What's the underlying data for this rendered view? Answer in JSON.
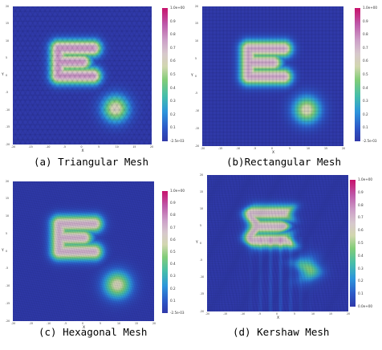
{
  "panels": [
    {
      "id": "a",
      "caption": "(a) Triangular Mesh",
      "mesh": "triangular",
      "xlabel": "X",
      "ylabel": "Y",
      "xticks": [
        "-20",
        "-15",
        "-10",
        "-5",
        "0",
        "5",
        "10",
        "15",
        "20"
      ],
      "yticks": [
        "20",
        "15",
        "10",
        "5",
        "0",
        "-5",
        "-10",
        "-15",
        "-20"
      ],
      "colorbar": {
        "max_label": "1.0e+00",
        "min_label": "-2.5e-03",
        "ticks": [
          "0.9",
          "0.8",
          "0.7",
          "0.6",
          "0.5",
          "0.4",
          "0.3",
          "0.2",
          "0.1"
        ]
      },
      "blobs": [
        {
          "shape": "E",
          "cx": 0,
          "cy": 4,
          "amp": 0.78
        },
        {
          "shape": "circle",
          "cx": 9.5,
          "cy": -9.5,
          "r": 4.5,
          "amp": 0.62
        }
      ]
    },
    {
      "id": "b",
      "caption": "(b)Rectangular Mesh",
      "mesh": "rectangular",
      "xlabel": "X",
      "ylabel": "Y",
      "xticks": [
        "-20",
        "-15",
        "-10",
        "-5",
        "0",
        "5",
        "10",
        "15",
        "20"
      ],
      "yticks": [
        "20",
        "15",
        "10",
        "5",
        "0",
        "-5",
        "-10",
        "-15",
        "-20"
      ],
      "colorbar": {
        "max_label": "1.0e+00",
        "min_label": "-2.5e-03",
        "ticks": [
          "0.9",
          "0.8",
          "0.7",
          "0.6",
          "0.5",
          "0.4",
          "0.3",
          "0.2",
          "0.1"
        ]
      },
      "blobs": [
        {
          "shape": "E",
          "cx": 0,
          "cy": 4,
          "amp": 0.74
        },
        {
          "shape": "circle",
          "cx": 9.5,
          "cy": -9.5,
          "r": 4.5,
          "amp": 0.6
        }
      ]
    },
    {
      "id": "c",
      "caption": "(c) Hexagonal Mesh",
      "mesh": "hexagonal",
      "xlabel": "X",
      "ylabel": "Y",
      "xticks": [
        "-20",
        "-15",
        "-10",
        "-5",
        "0",
        "5",
        "10",
        "15",
        "20"
      ],
      "yticks": [
        "20",
        "15",
        "10",
        "5",
        "0",
        "-5",
        "-10",
        "-15",
        "-20"
      ],
      "colorbar": {
        "max_label": "1.0e+00",
        "min_label": "-2.5e-03",
        "ticks": [
          "0.9",
          "0.8",
          "0.7",
          "0.6",
          "0.5",
          "0.4",
          "0.3",
          "0.2",
          "0.1"
        ]
      },
      "blobs": [
        {
          "shape": "E",
          "cx": 0,
          "cy": 4,
          "amp": 0.72
        },
        {
          "shape": "circle",
          "cx": 9.5,
          "cy": -9.5,
          "r": 4.5,
          "amp": 0.6
        }
      ]
    },
    {
      "id": "d",
      "caption": "(d) Kershaw Mesh",
      "mesh": "kershaw",
      "xlabel": "X",
      "ylabel": "Y",
      "xticks": [
        "-20",
        "-15",
        "-10",
        "-5",
        "0",
        "5",
        "10",
        "15",
        "20"
      ],
      "yticks": [
        "20",
        "15",
        "10",
        "5",
        "0",
        "-5",
        "-10",
        "-15",
        "-20"
      ],
      "colorbar": {
        "max_label": "1.0e+00",
        "min_label": "0.0e+00",
        "ticks": [
          "0.9",
          "0.8",
          "0.7",
          "0.6",
          "0.5",
          "0.4",
          "0.3",
          "0.2",
          "0.1"
        ]
      },
      "blobs": [
        {
          "shape": "E",
          "cx": 0,
          "cy": 5,
          "amp": 0.7
        },
        {
          "shape": "circle",
          "cx": 8.5,
          "cy": -7.5,
          "r": 4,
          "amp": 0.45
        }
      ]
    }
  ]
}
